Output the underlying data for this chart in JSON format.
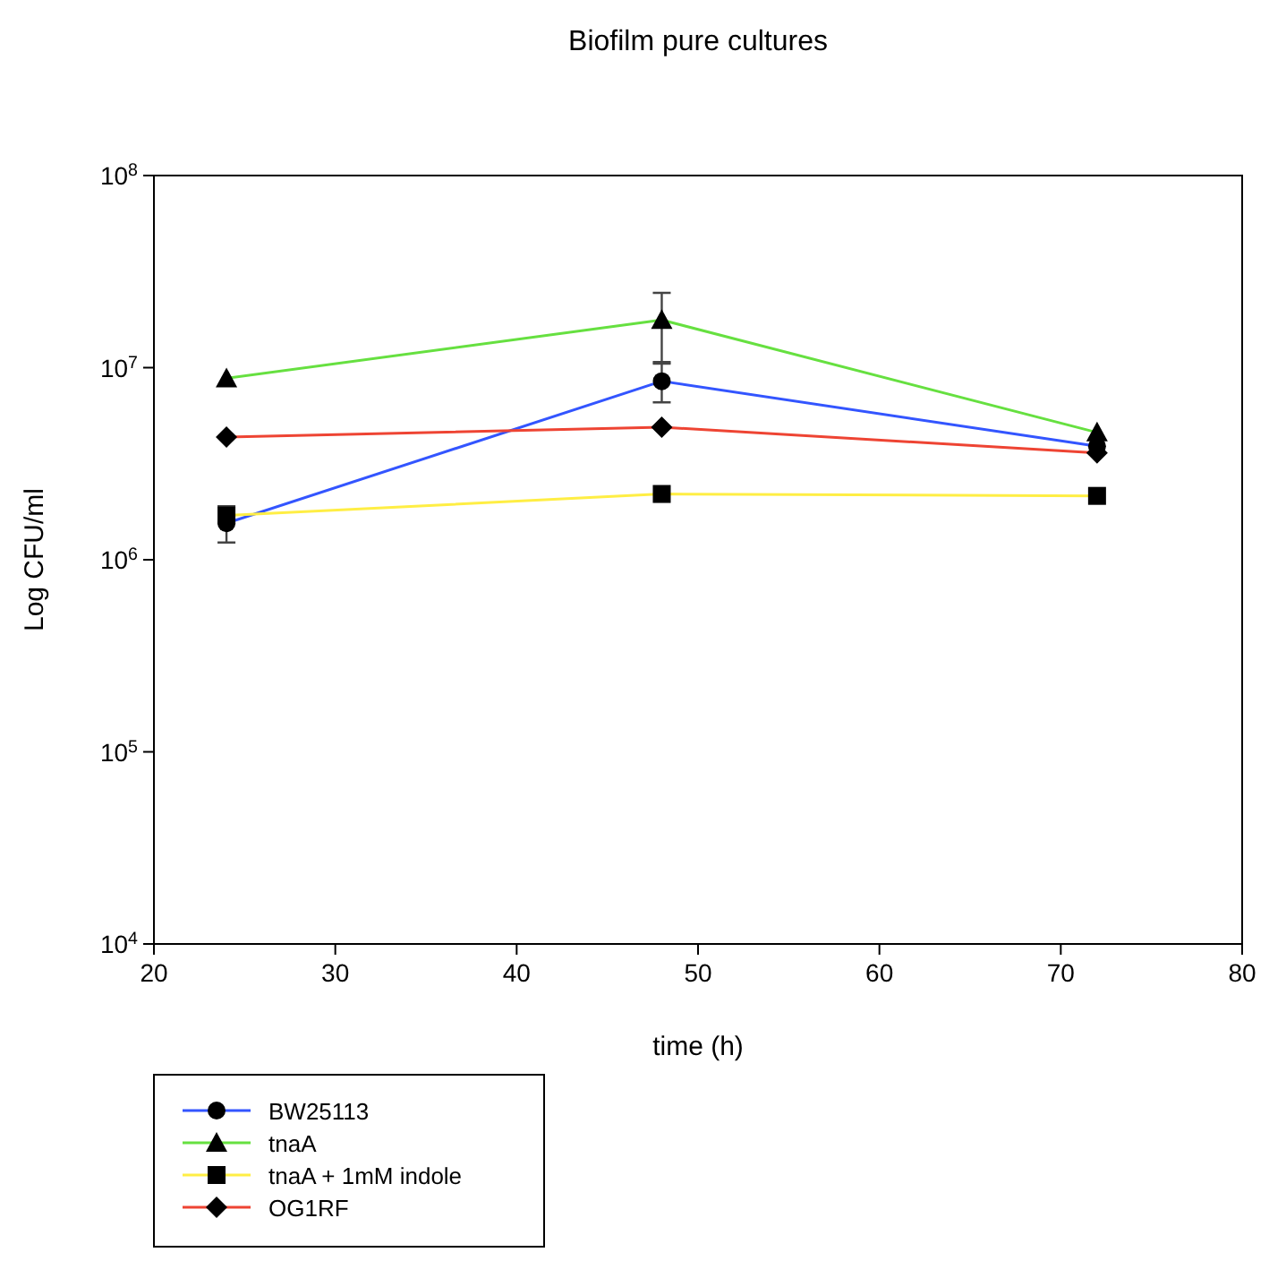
{
  "chart_data": {
    "type": "line",
    "title": "Biofilm pure cultures",
    "xlabel": "time (h)",
    "ylabel": "Log CFU/ml",
    "log": "y",
    "xlim": [
      20,
      80
    ],
    "xticks": [
      20,
      30,
      40,
      50,
      60,
      70,
      80
    ],
    "ylim": [
      10000,
      100000000
    ],
    "yticks": [
      {
        "value": 10000,
        "label": "10$^{4}$"
      },
      {
        "value": 100000,
        "label": "10$^{5}$"
      },
      {
        "value": 1000000,
        "label": "10$^{6}$"
      },
      {
        "value": 10000000,
        "label": "10$^{7}$"
      },
      {
        "value": 100000000,
        "label": "10$^{8}$"
      }
    ],
    "x": [
      24,
      48,
      72
    ],
    "legend": "bottom left",
    "grid": false,
    "series": [
      {
        "name": "BW25113",
        "color": "#3355ff",
        "marker": "circle",
        "values": [
          1550000,
          8500000,
          3900000
        ],
        "errors": [
          [
            1230000,
            1900000
          ],
          [
            6600000,
            10500000
          ],
          null
        ]
      },
      {
        "name": "tnaA",
        "color": "#66e040",
        "marker": "triangle",
        "values": [
          8800000,
          17700000,
          4600000
        ],
        "errors": [
          null,
          [
            10700000,
            24500000
          ],
          null
        ]
      },
      {
        "name": "tnaA + 1mM indole",
        "color": "#ffee44",
        "marker": "square",
        "values": [
          1700000,
          2200000,
          2150000
        ],
        "errors": [
          null,
          null,
          null
        ]
      },
      {
        "name": "OG1RF",
        "color": "#ee4433",
        "marker": "diamond",
        "values": [
          4350000,
          4900000,
          3600000
        ],
        "errors": [
          null,
          null,
          null
        ]
      }
    ]
  }
}
